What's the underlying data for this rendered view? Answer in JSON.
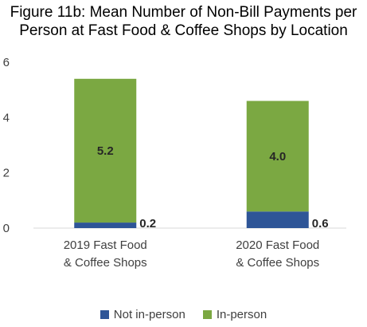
{
  "chart_data": {
    "type": "bar",
    "stacked": true,
    "title_line1": "Figure 11b: Mean Number of Non-Bill Payments per",
    "title_line2": "Person at Fast Food & Coffee Shops by Location",
    "categories": [
      [
        "2019 Fast Food",
        "& Coffee Shops"
      ],
      [
        "2020 Fast Food",
        "& Coffee Shops"
      ]
    ],
    "series": [
      {
        "name": "Not in-person",
        "values": [
          0.2,
          0.6
        ],
        "labels": [
          "0.2",
          "0.6"
        ],
        "color": "#2E5597"
      },
      {
        "name": "In-person",
        "values": [
          5.2,
          4.0
        ],
        "labels": [
          "5.2",
          "4.0"
        ],
        "color": "#7BA842"
      }
    ],
    "ylim": [
      0,
      6
    ],
    "yticks": [
      "0",
      "2",
      "4",
      "6"
    ],
    "ytick_values": [
      0,
      2,
      4,
      6
    ],
    "grid": false,
    "legend_position": "bottom"
  }
}
